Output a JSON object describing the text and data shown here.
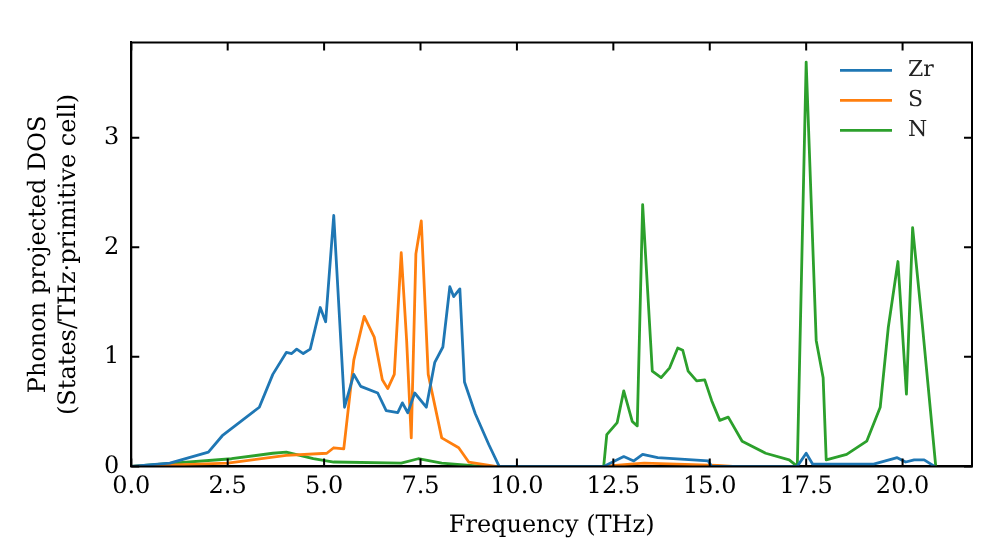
{
  "chart_data": {
    "type": "line",
    "xlabel": "Frequency (THz)",
    "ylabel": "Phonon projected DOS\n(States/THz·primitive cell)",
    "xlim": [
      0,
      21.8
    ],
    "ylim": [
      0,
      3.87
    ],
    "xticks": [
      {
        "value": 0,
        "label": "0.0"
      },
      2.5,
      {
        "value": 5,
        "label": "5.0"
      },
      7.5,
      {
        "value": 10,
        "label": "10.0"
      },
      12.5,
      {
        "value": 15,
        "label": "15.0"
      },
      17.5,
      {
        "value": 20,
        "label": "20.0"
      }
    ],
    "yticks": [
      0,
      1,
      2,
      3
    ],
    "grid": false,
    "legend": "top right",
    "marker": "none",
    "line_style": "solid",
    "series": [
      {
        "name": "Zr",
        "color": "#1f77b4",
        "x": [
          0,
          1,
          2,
          2.36,
          3.32,
          3.67,
          4.02,
          4.16,
          4.29,
          4.46,
          4.64,
          4.9,
          5.04,
          5.25,
          5.53,
          5.77,
          5.95,
          6.39,
          6.61,
          6.91,
          7.03,
          7.17,
          7.35,
          7.65,
          7.87,
          8.08,
          8.26,
          8.36,
          8.52,
          8.64,
          8.92,
          9.27,
          9.54,
          12.25,
          12.77,
          13.03,
          13.26,
          13.65,
          14.96,
          15.05,
          17.27,
          17.5,
          17.67,
          19.25,
          19.86,
          20.08,
          20.3,
          20.56,
          20.83
        ],
        "values": [
          0,
          0.03,
          0.13,
          0.28,
          0.54,
          0.84,
          1.04,
          1.03,
          1.07,
          1.03,
          1.07,
          1.45,
          1.32,
          2.29,
          0.54,
          0.84,
          0.73,
          0.67,
          0.51,
          0.49,
          0.58,
          0.49,
          0.67,
          0.54,
          0.95,
          1.09,
          1.64,
          1.55,
          1.62,
          0.77,
          0.48,
          0.2,
          0,
          0,
          0.09,
          0.05,
          0.11,
          0.08,
          0.05,
          0,
          0,
          0.12,
          0.02,
          0.02,
          0.08,
          0.04,
          0.06,
          0.06,
          0
        ]
      },
      {
        "name": "S",
        "color": "#ff7f0e",
        "x": [
          0,
          2.5,
          4.02,
          5.07,
          5.25,
          5.51,
          5.77,
          6.04,
          6.3,
          6.51,
          6.65,
          6.82,
          7.0,
          7.14,
          7.26,
          7.38,
          7.52,
          7.7,
          8.05,
          8.49,
          8.75,
          9.45,
          12.25,
          12.94,
          13.3,
          15.2,
          15.6
        ],
        "values": [
          0,
          0.03,
          0.1,
          0.12,
          0.17,
          0.16,
          0.97,
          1.37,
          1.18,
          0.79,
          0.71,
          0.84,
          1.95,
          1.15,
          0.26,
          1.94,
          2.24,
          0.84,
          0.26,
          0.17,
          0.04,
          0,
          0,
          0.02,
          0.03,
          0.01,
          0
        ]
      },
      {
        "name": "N",
        "color": "#2ca02c",
        "x": [
          0,
          2.6,
          3.67,
          4.02,
          4.72,
          5.25,
          7.0,
          7.44,
          8.05,
          9.1,
          12.25,
          12.33,
          12.6,
          12.77,
          12.99,
          13.12,
          13.26,
          13.51,
          13.74,
          13.96,
          14.17,
          14.3,
          14.44,
          14.66,
          14.87,
          15.05,
          15.26,
          15.48,
          15.84,
          16.45,
          17.06,
          17.27,
          17.5,
          17.76,
          17.94,
          18.02,
          18.55,
          19.07,
          19.42,
          19.63,
          19.88,
          20.1,
          20.26,
          20.51,
          20.86
        ],
        "values": [
          0,
          0.07,
          0.12,
          0.13,
          0.07,
          0.04,
          0.03,
          0.07,
          0.03,
          0,
          0,
          0.29,
          0.4,
          0.69,
          0.41,
          0.37,
          2.39,
          0.87,
          0.81,
          0.9,
          1.08,
          1.06,
          0.87,
          0.78,
          0.79,
          0.6,
          0.42,
          0.45,
          0.23,
          0.12,
          0.06,
          0,
          3.69,
          1.15,
          0.81,
          0.06,
          0.11,
          0.23,
          0.54,
          1.27,
          1.87,
          0.66,
          2.18,
          1.3,
          0
        ]
      }
    ]
  }
}
